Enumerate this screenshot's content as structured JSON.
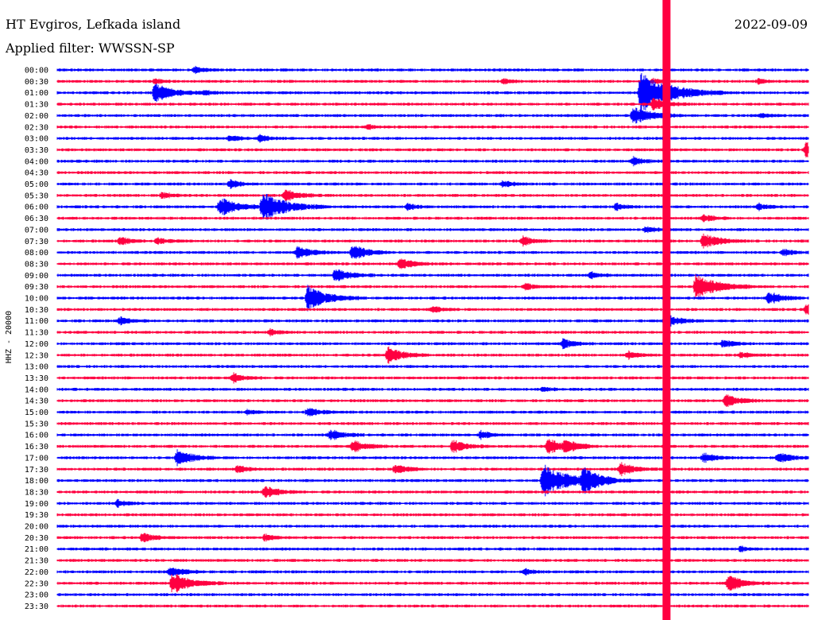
{
  "header": {
    "station": "HT Evgiros, Lefkada island",
    "date": "2022-09-09",
    "filter": "Applied filter: WWSSN-SP"
  },
  "colors": {
    "odd": "#0000ff",
    "even": "#ff0040",
    "text": "#000000"
  },
  "chart_data": {
    "type": "line",
    "title": "HT Evgiros, Lefkada island",
    "subtitle": "Applied filter: WWSSN-SP",
    "ylabel": "HHZ - 20000",
    "rows": [
      "00:00",
      "00:30",
      "01:00",
      "01:30",
      "02:00",
      "02:30",
      "03:00",
      "03:30",
      "04:00",
      "04:30",
      "05:00",
      "05:30",
      "06:00",
      "06:30",
      "07:00",
      "07:30",
      "08:00",
      "08:30",
      "09:00",
      "09:30",
      "10:00",
      "10:30",
      "11:00",
      "11:30",
      "12:00",
      "12:30",
      "13:00",
      "13:30",
      "14:00",
      "14:30",
      "15:00",
      "15:30",
      "16:00",
      "16:30",
      "17:00",
      "17:30",
      "18:00",
      "18:30",
      "19:00",
      "19:30",
      "20:00",
      "20:30",
      "21:00",
      "21:30",
      "22:00",
      "22:30",
      "23:00",
      "23:30"
    ],
    "row_colors": [
      "blue",
      "red"
    ],
    "x_range_minutes": [
      0,
      30
    ],
    "grid": false,
    "events": [
      {
        "row": 0,
        "minute": 5.5,
        "amp": 0.4
      },
      {
        "row": 1,
        "minute": 3.9,
        "amp": 0.3
      },
      {
        "row": 1,
        "minute": 17.8,
        "amp": 0.3
      },
      {
        "row": 1,
        "minute": 23.8,
        "amp": 0.3
      },
      {
        "row": 1,
        "minute": 28.0,
        "amp": 0.3
      },
      {
        "row": 2,
        "minute": 3.9,
        "amp": 1.2
      },
      {
        "row": 2,
        "minute": 5.9,
        "amp": 0.3
      },
      {
        "row": 2,
        "minute": 23.3,
        "amp": 2.5
      },
      {
        "row": 3,
        "minute": 23.8,
        "amp": 0.8
      },
      {
        "row": 4,
        "minute": 23.0,
        "amp": 1.2
      },
      {
        "row": 4,
        "minute": 28.1,
        "amp": 0.3
      },
      {
        "row": 5,
        "minute": 12.4,
        "amp": 0.3
      },
      {
        "row": 6,
        "minute": 6.9,
        "amp": 0.4
      },
      {
        "row": 6,
        "minute": 8.1,
        "amp": 0.5
      },
      {
        "row": 7,
        "minute": 29.9,
        "amp": 1.0
      },
      {
        "row": 8,
        "minute": 23.0,
        "amp": 0.5
      },
      {
        "row": 10,
        "minute": 6.9,
        "amp": 0.5
      },
      {
        "row": 10,
        "minute": 17.8,
        "amp": 0.4
      },
      {
        "row": 11,
        "minute": 4.2,
        "amp": 0.4
      },
      {
        "row": 11,
        "minute": 9.1,
        "amp": 0.8
      },
      {
        "row": 12,
        "minute": 6.5,
        "amp": 1.2
      },
      {
        "row": 12,
        "minute": 8.2,
        "amp": 1.8
      },
      {
        "row": 12,
        "minute": 14.0,
        "amp": 0.4
      },
      {
        "row": 12,
        "minute": 22.3,
        "amp": 0.4
      },
      {
        "row": 12,
        "minute": 28.0,
        "amp": 0.4
      },
      {
        "row": 13,
        "minute": 25.8,
        "amp": 0.5
      },
      {
        "row": 14,
        "minute": 23.5,
        "amp": 0.4
      },
      {
        "row": 15,
        "minute": 2.5,
        "amp": 0.5
      },
      {
        "row": 15,
        "minute": 4.0,
        "amp": 0.4
      },
      {
        "row": 15,
        "minute": 18.6,
        "amp": 0.6
      },
      {
        "row": 15,
        "minute": 25.8,
        "amp": 1.0
      },
      {
        "row": 16,
        "minute": 9.6,
        "amp": 0.8
      },
      {
        "row": 16,
        "minute": 11.8,
        "amp": 1.0
      },
      {
        "row": 16,
        "minute": 29.0,
        "amp": 0.4
      },
      {
        "row": 17,
        "minute": 13.7,
        "amp": 0.7
      },
      {
        "row": 18,
        "minute": 11.1,
        "amp": 0.9
      },
      {
        "row": 18,
        "minute": 21.3,
        "amp": 0.4
      },
      {
        "row": 19,
        "minute": 18.7,
        "amp": 0.4
      },
      {
        "row": 19,
        "minute": 25.5,
        "amp": 1.6
      },
      {
        "row": 20,
        "minute": 10.0,
        "amp": 1.5
      },
      {
        "row": 20,
        "minute": 28.4,
        "amp": 0.8
      },
      {
        "row": 21,
        "minute": 15.0,
        "amp": 0.4
      },
      {
        "row": 21,
        "minute": 29.9,
        "amp": 0.6
      },
      {
        "row": 22,
        "minute": 2.5,
        "amp": 0.5
      },
      {
        "row": 22,
        "minute": 24.3,
        "amp": 0.8
      },
      {
        "row": 23,
        "minute": 8.5,
        "amp": 0.4
      },
      {
        "row": 24,
        "minute": 20.2,
        "amp": 0.6
      },
      {
        "row": 24,
        "minute": 26.6,
        "amp": 0.5
      },
      {
        "row": 25,
        "minute": 13.2,
        "amp": 1.0
      },
      {
        "row": 25,
        "minute": 22.8,
        "amp": 0.5
      },
      {
        "row": 25,
        "minute": 27.3,
        "amp": 0.4
      },
      {
        "row": 27,
        "minute": 7.0,
        "amp": 0.6
      },
      {
        "row": 28,
        "minute": 19.4,
        "amp": 0.3
      },
      {
        "row": 29,
        "minute": 26.7,
        "amp": 0.8
      },
      {
        "row": 30,
        "minute": 7.6,
        "amp": 0.3
      },
      {
        "row": 30,
        "minute": 10.0,
        "amp": 0.6
      },
      {
        "row": 32,
        "minute": 10.9,
        "amp": 0.7
      },
      {
        "row": 32,
        "minute": 16.9,
        "amp": 0.5
      },
      {
        "row": 33,
        "minute": 11.8,
        "amp": 0.8
      },
      {
        "row": 33,
        "minute": 15.8,
        "amp": 0.8
      },
      {
        "row": 33,
        "minute": 19.6,
        "amp": 1.0
      },
      {
        "row": 33,
        "minute": 20.3,
        "amp": 0.7
      },
      {
        "row": 34,
        "minute": 4.8,
        "amp": 1.0
      },
      {
        "row": 34,
        "minute": 25.8,
        "amp": 0.6
      },
      {
        "row": 34,
        "minute": 28.8,
        "amp": 0.7
      },
      {
        "row": 35,
        "minute": 7.2,
        "amp": 0.5
      },
      {
        "row": 35,
        "minute": 13.5,
        "amp": 0.6
      },
      {
        "row": 35,
        "minute": 22.5,
        "amp": 0.8
      },
      {
        "row": 36,
        "minute": 19.4,
        "amp": 2.0
      },
      {
        "row": 36,
        "minute": 21.0,
        "amp": 1.4
      },
      {
        "row": 37,
        "minute": 8.3,
        "amp": 0.8
      },
      {
        "row": 38,
        "minute": 2.4,
        "amp": 0.4
      },
      {
        "row": 41,
        "minute": 3.4,
        "amp": 0.6
      },
      {
        "row": 41,
        "minute": 8.3,
        "amp": 0.4
      },
      {
        "row": 42,
        "minute": 27.3,
        "amp": 0.3
      },
      {
        "row": 44,
        "minute": 4.5,
        "amp": 0.7
      },
      {
        "row": 44,
        "minute": 18.7,
        "amp": 0.4
      },
      {
        "row": 45,
        "minute": 4.6,
        "amp": 1.3
      },
      {
        "row": 45,
        "minute": 26.8,
        "amp": 1.0
      }
    ],
    "continuous_signal": {
      "minute": 24.3,
      "rows": [
        0,
        47
      ]
    }
  }
}
